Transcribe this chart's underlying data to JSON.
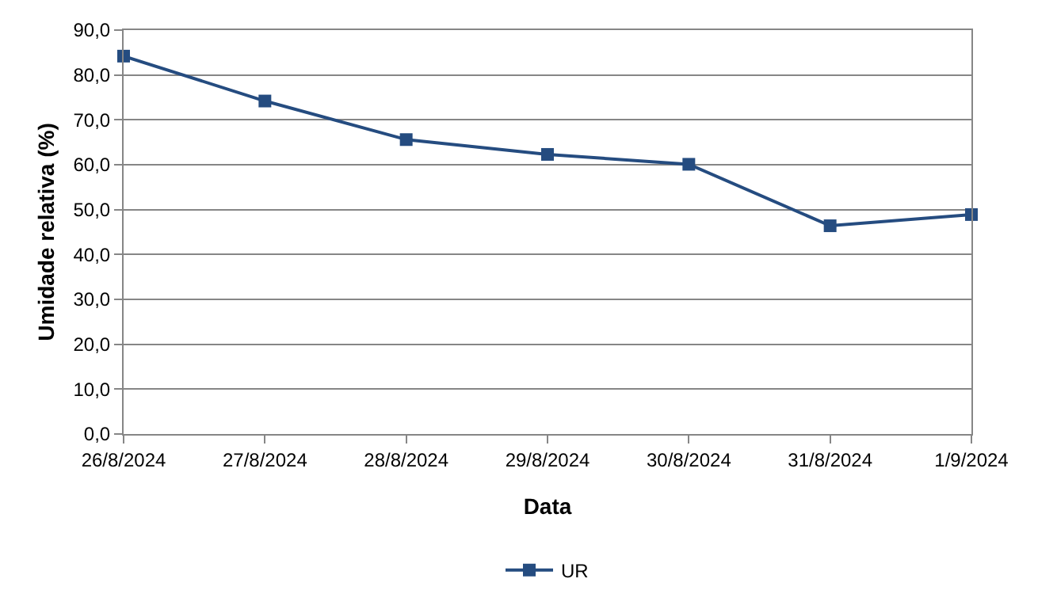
{
  "chart_data": {
    "type": "line",
    "xlabel": "Data",
    "ylabel": "Umidade relativa (%)",
    "categories": [
      "26/8/2024",
      "27/8/2024",
      "28/8/2024",
      "29/8/2024",
      "30/8/2024",
      "31/8/2024",
      "1/9/2024"
    ],
    "series": [
      {
        "name": "UR",
        "color": "#254c80",
        "values": [
          84.2,
          74.2,
          65.6,
          62.3,
          60.1,
          46.4,
          48.9
        ]
      }
    ],
    "ylim": [
      0,
      90
    ],
    "yticks": [
      {
        "value": 0,
        "label": "0,0"
      },
      {
        "value": 10,
        "label": "10,0"
      },
      {
        "value": 20,
        "label": "20,0"
      },
      {
        "value": 30,
        "label": "30,0"
      },
      {
        "value": 40,
        "label": "40,0"
      },
      {
        "value": 50,
        "label": "50,0"
      },
      {
        "value": 60,
        "label": "60,0"
      },
      {
        "value": 70,
        "label": "70,0"
      },
      {
        "value": 80,
        "label": "80,0"
      },
      {
        "value": 90,
        "label": "90,0"
      }
    ],
    "grid": "y",
    "legend": "bottom",
    "marker": "square",
    "line_style": "solid"
  }
}
